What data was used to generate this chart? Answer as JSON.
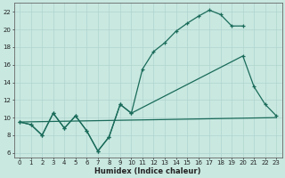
{
  "xlabel": "Humidex (Indice chaleur)",
  "bg_color": "#c8e8e0",
  "grid_color": "#b0d4d0",
  "line_color": "#1a6b5a",
  "xlim": [
    -0.5,
    23.5
  ],
  "ylim": [
    5.5,
    23.0
  ],
  "xticks": [
    0,
    1,
    2,
    3,
    4,
    5,
    6,
    7,
    8,
    9,
    10,
    11,
    12,
    13,
    14,
    15,
    16,
    17,
    18,
    19,
    20,
    21,
    22,
    23
  ],
  "yticks": [
    6,
    8,
    10,
    12,
    14,
    16,
    18,
    20,
    22
  ],
  "line1_x": [
    0,
    1,
    2,
    3,
    4,
    5,
    6,
    7,
    8,
    9,
    10,
    11,
    12,
    13,
    14,
    15,
    16,
    17,
    18,
    19,
    20
  ],
  "line1_y": [
    9.5,
    9.2,
    8.0,
    10.5,
    8.8,
    10.2,
    8.5,
    6.2,
    7.8,
    11.5,
    10.5,
    15.5,
    17.5,
    18.5,
    19.8,
    20.7,
    21.5,
    22.2,
    21.7,
    20.4,
    20.4
  ],
  "line2_x": [
    0,
    1,
    2,
    3,
    4,
    5,
    6,
    7,
    8,
    9,
    10,
    20,
    21,
    22,
    23
  ],
  "line2_y": [
    9.5,
    9.2,
    8.0,
    10.5,
    8.8,
    10.2,
    8.5,
    6.2,
    7.8,
    11.5,
    10.5,
    17.0,
    13.5,
    11.5,
    10.2
  ],
  "line3_x": [
    0,
    23
  ],
  "line3_y": [
    9.5,
    10.0
  ],
  "tick_fontsize": 5.0,
  "xlabel_fontsize": 6.0
}
